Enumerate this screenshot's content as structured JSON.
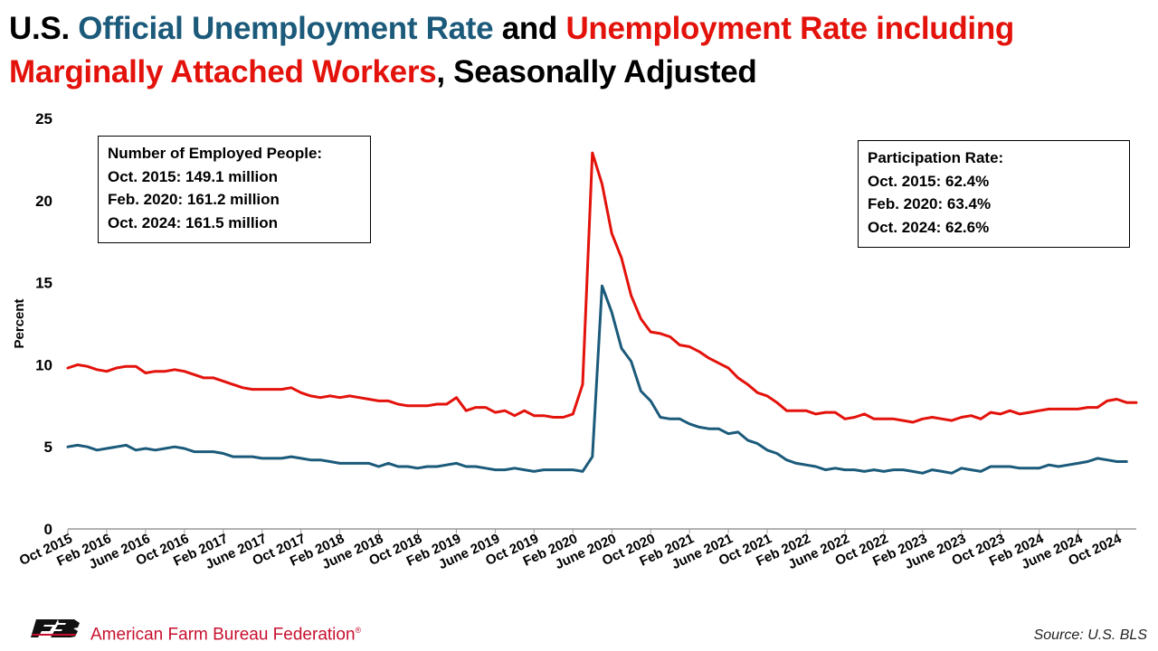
{
  "title": {
    "part1": "U.S. ",
    "part2": "Official Unemployment Rate",
    "part3": " and ",
    "part4": "Unemployment Rate including Marginally Attached Workers",
    "part5": ", Seasonally Adjusted"
  },
  "colors": {
    "official": "#1b5a7a",
    "marginal": "#e3120b",
    "axis": "#999999",
    "logo": "#c8102e"
  },
  "box_employed": {
    "heading": "Number of Employed People:",
    "line1": "Oct. 2015: 149.1 million",
    "line2": "Feb. 2020: 161.2 million",
    "line3": "Oct. 2024: 161.5 million"
  },
  "box_participation": {
    "heading": "Participation Rate:",
    "line1": "Oct. 2015: 62.4%",
    "line2": "Feb. 2020: 63.4%",
    "line3": "Oct. 2024: 62.6%"
  },
  "footer": {
    "organization": "American Farm Bureau Federation",
    "trademark": "®",
    "source": "Source: U.S. BLS"
  },
  "chart_data": {
    "type": "line",
    "ylabel": "Percent",
    "ylim": [
      0,
      25
    ],
    "yticks": [
      0,
      5,
      10,
      15,
      20,
      25
    ],
    "grid": false,
    "x_start": "Oct 2015",
    "x_end": "Oct 2024",
    "x_ticks": [
      {
        "label": "Oct 2015",
        "index": 0
      },
      {
        "label": "Feb 2016",
        "index": 4
      },
      {
        "label": "June 2016",
        "index": 8
      },
      {
        "label": "Oct 2016",
        "index": 12
      },
      {
        "label": "Feb 2017",
        "index": 16
      },
      {
        "label": "June 2017",
        "index": 20
      },
      {
        "label": "Oct 2017",
        "index": 24
      },
      {
        "label": "Feb 2018",
        "index": 28
      },
      {
        "label": "June 2018",
        "index": 32
      },
      {
        "label": "Oct 2018",
        "index": 36
      },
      {
        "label": "Feb 2019",
        "index": 40
      },
      {
        "label": "June 2019",
        "index": 44
      },
      {
        "label": "Oct 2019",
        "index": 48
      },
      {
        "label": "Feb 2020",
        "index": 52
      },
      {
        "label": "June 2020",
        "index": 56
      },
      {
        "label": "Oct 2020",
        "index": 60
      },
      {
        "label": "Feb 2021",
        "index": 64
      },
      {
        "label": "June 2021",
        "index": 68
      },
      {
        "label": "Oct 2021",
        "index": 72
      },
      {
        "label": "Feb 2022",
        "index": 76
      },
      {
        "label": "June 2022",
        "index": 80
      },
      {
        "label": "Oct 2022",
        "index": 84
      },
      {
        "label": "Feb 2023",
        "index": 88
      },
      {
        "label": "June 2023",
        "index": 92
      },
      {
        "label": "Oct 2023",
        "index": 96
      },
      {
        "label": "Feb 2024",
        "index": 100
      },
      {
        "label": "June 2024",
        "index": 104
      },
      {
        "label": "Oct 2024",
        "index": 108
      }
    ],
    "series": [
      {
        "key": "marginal",
        "color": "#e3120b",
        "values": [
          9.8,
          10.0,
          9.9,
          9.7,
          9.6,
          9.8,
          9.9,
          9.9,
          9.5,
          9.6,
          9.6,
          9.7,
          9.6,
          9.4,
          9.2,
          9.2,
          9.0,
          8.8,
          8.6,
          8.5,
          8.5,
          8.5,
          8.5,
          8.6,
          8.3,
          8.1,
          8.0,
          8.1,
          8.0,
          8.1,
          8.0,
          7.9,
          7.8,
          7.8,
          7.6,
          7.5,
          7.5,
          7.5,
          7.6,
          7.6,
          8.0,
          7.2,
          7.4,
          7.4,
          7.1,
          7.2,
          6.9,
          7.2,
          6.9,
          6.9,
          6.8,
          6.8,
          7.0,
          8.8,
          22.9,
          21.0,
          18.0,
          16.5,
          14.2,
          12.8,
          12.0,
          11.9,
          11.7,
          11.2,
          11.1,
          10.8,
          10.4,
          10.1,
          9.8,
          9.2,
          8.8,
          8.3,
          8.1,
          7.7,
          7.2,
          7.2,
          7.2,
          7.0,
          7.1,
          7.1,
          6.7,
          6.8,
          7.0,
          6.7,
          6.7,
          6.7,
          6.6,
          6.5,
          6.7,
          6.8,
          6.7,
          6.6,
          6.8,
          6.9,
          6.7,
          7.1,
          7.0,
          7.2,
          7.0,
          7.1,
          7.2,
          7.3,
          7.3,
          7.3,
          7.3,
          7.4,
          7.4,
          7.8,
          7.9,
          7.7,
          7.7
        ]
      },
      {
        "key": "official",
        "color": "#1b5a7a",
        "values": [
          5.0,
          5.1,
          5.0,
          4.8,
          4.9,
          5.0,
          5.1,
          4.8,
          4.9,
          4.8,
          4.9,
          5.0,
          4.9,
          4.7,
          4.7,
          4.7,
          4.6,
          4.4,
          4.4,
          4.4,
          4.3,
          4.3,
          4.3,
          4.4,
          4.3,
          4.2,
          4.2,
          4.1,
          4.0,
          4.0,
          4.0,
          4.0,
          3.8,
          4.0,
          3.8,
          3.8,
          3.7,
          3.8,
          3.8,
          3.9,
          4.0,
          3.8,
          3.8,
          3.7,
          3.6,
          3.6,
          3.7,
          3.6,
          3.5,
          3.6,
          3.6,
          3.6,
          3.6,
          3.5,
          4.4,
          14.8,
          13.2,
          11.0,
          10.2,
          8.4,
          7.8,
          6.8,
          6.7,
          6.7,
          6.4,
          6.2,
          6.1,
          6.1,
          5.8,
          5.9,
          5.4,
          5.2,
          4.8,
          4.6,
          4.2,
          4.0,
          3.9,
          3.8,
          3.6,
          3.7,
          3.6,
          3.6,
          3.5,
          3.6,
          3.5,
          3.6,
          3.6,
          3.5,
          3.4,
          3.6,
          3.5,
          3.4,
          3.7,
          3.6,
          3.5,
          3.8,
          3.8,
          3.8,
          3.7,
          3.7,
          3.7,
          3.9,
          3.8,
          3.9,
          4.0,
          4.1,
          4.3,
          4.2,
          4.1,
          4.1
        ]
      }
    ]
  }
}
